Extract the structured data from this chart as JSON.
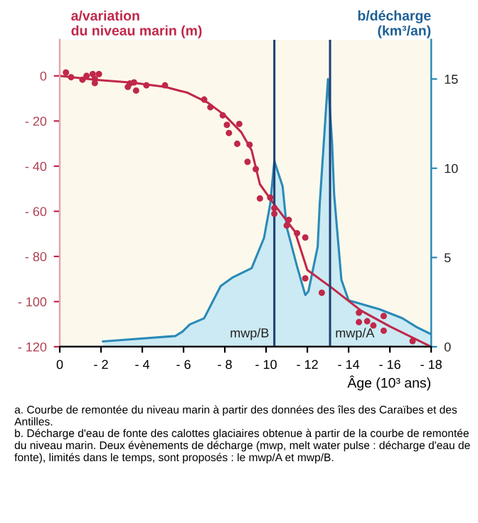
{
  "chart_data": {
    "type": "line",
    "ylabel": "a/variation\ndu niveau marin (m)",
    "y2label": "b/décharge\n(km³/an)",
    "xlabel": "Âge (10³ ans)",
    "xlim": [
      0,
      -18
    ],
    "xticks": [
      0,
      {
        "value": -2,
        "label": "- 2"
      },
      {
        "value": -4,
        "label": "- 4"
      },
      {
        "value": -6,
        "label": "- 6"
      },
      {
        "value": -8,
        "label": "- 8"
      },
      {
        "value": -10,
        "label": "- 10"
      },
      {
        "value": -12,
        "label": "- 12"
      },
      {
        "value": -14,
        "label": "- 14"
      },
      {
        "value": -16,
        "label": "- 16"
      },
      {
        "value": -18,
        "label": "- 18"
      }
    ],
    "ylim": [
      -120,
      16
    ],
    "yticks": [
      0,
      {
        "value": -20,
        "label": "- 20"
      },
      {
        "value": -40,
        "label": "- 40"
      },
      {
        "value": -60,
        "label": "- 60"
      },
      {
        "value": -80,
        "label": "- 80"
      },
      {
        "value": -100,
        "label": "- 100"
      },
      {
        "value": -120,
        "label": "- 120"
      }
    ],
    "y2lim": [
      0,
      17.2
    ],
    "y2ticks": [
      0,
      5,
      10,
      15
    ],
    "grid": false,
    "legend": false,
    "series": [
      {
        "type": "area",
        "axis": "y2",
        "color": "#2a8ab8",
        "x": [
          -2.1,
          -5.6,
          -5.95,
          -6.3,
          -7.0,
          -7.8,
          -8.4,
          -9.3,
          -9.9,
          -10.2,
          -10.4,
          -10.8,
          -11.0,
          -11.5,
          -11.9,
          -12.05,
          -12.5,
          -12.6,
          -13.0,
          -13.2,
          -13.3,
          -13.65,
          -14.0,
          -15.5,
          -16.6,
          -17.3,
          -18
        ],
        "values": [
          0.3,
          0.6,
          0.85,
          1.25,
          1.6,
          3.4,
          3.9,
          4.4,
          6.1,
          8.0,
          10.4,
          9.0,
          6.7,
          4.5,
          2.9,
          3.1,
          5.6,
          8.0,
          15.0,
          11.4,
          8.5,
          3.75,
          2.6,
          2.1,
          1.6,
          1.1,
          0.7
        ]
      },
      {
        "color": "#c0284a",
        "x": [
          0,
          -1.7,
          -3.5,
          -5.1,
          -6.2,
          -7.2,
          -8.0,
          -8.8,
          -9.3,
          -9.7,
          -10.4,
          -11.4,
          -12.0,
          -13.2,
          -14.6,
          -16.0,
          -18
        ],
        "values": [
          0,
          -1.7,
          -3,
          -4.9,
          -7.5,
          -12,
          -17.5,
          -25,
          -33,
          -48,
          -57,
          -69,
          -86,
          -94,
          -104,
          -111,
          -120
        ]
      },
      {
        "type": "scatter",
        "color": "#c0284a",
        "marker": "circle",
        "x": [
          -0.3,
          -0.55,
          -1.1,
          -1.3,
          -1.6,
          -1.7,
          -1.9,
          -1.7,
          -3.3,
          -3.4,
          -3.6,
          -3.7,
          -4.2,
          -5.1,
          -7.0,
          -7.3,
          -7.9,
          -8.1,
          -8.7,
          -8.2,
          -8.6,
          -9.2,
          -9.1,
          -9.5,
          -9.7,
          -10.2,
          -10.4,
          -10.4,
          -11.1,
          -11.0,
          -11.5,
          -11.9,
          -11.9,
          -12.7,
          -14.5,
          -14.5,
          -14.9,
          -15.2,
          -15.7,
          -15.7,
          -17.1
        ],
        "values": [
          1.5,
          -0.6,
          -1.7,
          0,
          0.8,
          -1.3,
          0.8,
          -3.2,
          -4.9,
          -3.4,
          -2.9,
          -6.5,
          -4.2,
          -4.2,
          -10.5,
          -13.9,
          -17.5,
          -21.7,
          -21.3,
          -25.3,
          -30.1,
          -30.5,
          -38.1,
          -41.3,
          -54.3,
          -53.9,
          -58.6,
          -61.1,
          -63.8,
          -66.3,
          -69.7,
          -71.6,
          -89.7,
          -96.1,
          -104.9,
          -109.1,
          -108.7,
          -110.6,
          -106.4,
          -112.9,
          -117.5
        ]
      }
    ],
    "ref_lines": [
      {
        "axis": "x",
        "value": -10.4,
        "label": "mwp/B",
        "color": "#1f3f73"
      },
      {
        "axis": "x",
        "value": -13.1,
        "label": "mwp/A",
        "color": "#1f3f73"
      }
    ],
    "annotations": [
      "a. Courbe de remontée du niveau marin à partir des données des îles des Caraïbes et des Antilles.",
      "b. Décharge d'eau de fonte des calottes glaciaires obtenue à partir de la courbe de remontée du niveau marin. Deux évènements de décharge (mwp, melt water pulse : décharge d'eau de fonte), limités dans le temps, sont proposés : le mwp/A et mwp/B."
    ]
  }
}
